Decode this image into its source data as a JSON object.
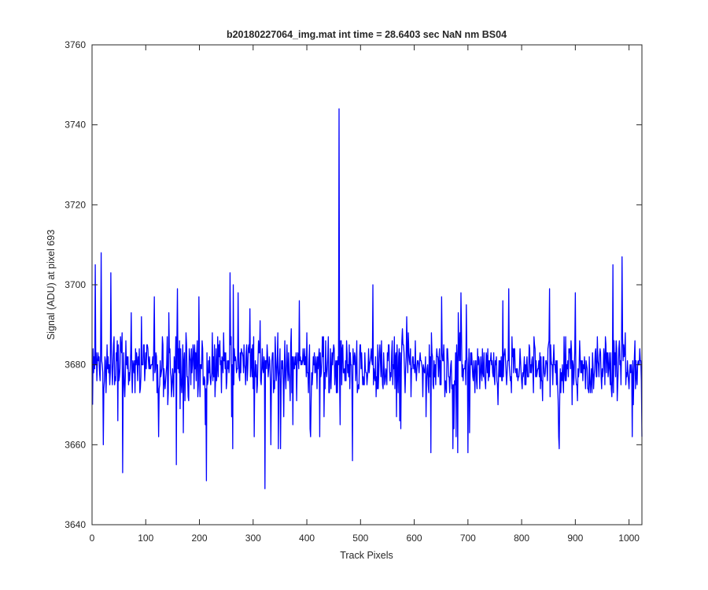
{
  "chart_data": {
    "type": "line",
    "title": "b20180227064_img.mat int time = 28.6403 sec  NaN nm BS04",
    "xlabel": "Track Pixels",
    "ylabel": "Signal (ADU) at pixel 693",
    "xlim": [
      0,
      1024
    ],
    "ylim": [
      3640,
      3760
    ],
    "xticks": [
      "0",
      "100",
      "200",
      "300",
      "400",
      "500",
      "600",
      "700",
      "800",
      "900",
      "1000"
    ],
    "yticks": [
      "3640",
      "3660",
      "3680",
      "3700",
      "3720",
      "3740",
      "3760"
    ],
    "grid": false,
    "line_color": "#0000ff",
    "series": [
      {
        "x": [
          1,
          1024
        ],
        "baseline": 3679,
        "noise_band": [
          3668,
          3691
        ],
        "extremes": [
          {
            "x": 1,
            "y": 3670
          },
          {
            "x": 6,
            "y": 3705
          },
          {
            "x": 17,
            "y": 3708
          },
          {
            "x": 35,
            "y": 3703
          },
          {
            "x": 57,
            "y": 3653
          },
          {
            "x": 157,
            "y": 3655
          },
          {
            "x": 213,
            "y": 3651
          },
          {
            "x": 257,
            "y": 3703
          },
          {
            "x": 322,
            "y": 3649
          },
          {
            "x": 460,
            "y": 3744
          },
          {
            "x": 485,
            "y": 3656
          },
          {
            "x": 631,
            "y": 3658
          },
          {
            "x": 700,
            "y": 3658
          },
          {
            "x": 970,
            "y": 3705
          },
          {
            "x": 987,
            "y": 3707
          },
          {
            "x": 1024,
            "y": 3662
          }
        ]
      }
    ]
  }
}
